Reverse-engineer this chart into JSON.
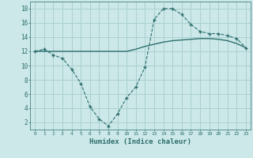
{
  "line1_x": [
    0,
    1,
    2,
    3,
    4,
    5,
    6,
    7,
    8,
    9,
    10,
    11,
    12,
    13,
    14,
    15,
    16,
    17,
    18,
    19,
    20,
    21,
    22,
    23
  ],
  "line1_y": [
    12,
    12,
    12,
    12,
    12,
    12,
    12,
    12,
    12,
    12,
    12,
    12.3,
    12.7,
    13.0,
    13.3,
    13.5,
    13.6,
    13.7,
    13.8,
    13.8,
    13.7,
    13.5,
    13.1,
    12.5
  ],
  "line2_x": [
    0,
    1,
    2,
    3,
    4,
    5,
    6,
    7,
    8,
    9,
    10,
    11,
    12,
    13,
    14,
    15,
    16,
    17,
    18,
    19,
    20,
    21,
    22,
    23
  ],
  "line2_y": [
    12,
    12.3,
    11.5,
    11.0,
    9.5,
    7.5,
    4.2,
    2.5,
    1.5,
    3.2,
    5.5,
    7.0,
    9.8,
    16.5,
    18.0,
    18.0,
    17.2,
    15.8,
    14.8,
    14.5,
    14.5,
    14.2,
    13.8,
    12.5
  ],
  "line_color": "#2e6e6e",
  "bg_color": "#cce8e8",
  "grid_color": "#aad0d0",
  "xlabel": "Humidex (Indice chaleur)",
  "xlim": [
    -0.5,
    23.5
  ],
  "ylim": [
    1,
    19
  ],
  "yticks": [
    2,
    4,
    6,
    8,
    10,
    12,
    14,
    16,
    18
  ],
  "xticks": [
    0,
    1,
    2,
    3,
    4,
    5,
    6,
    7,
    8,
    9,
    10,
    11,
    12,
    13,
    14,
    15,
    16,
    17,
    18,
    19,
    20,
    21,
    22,
    23
  ],
  "tick_labels": [
    "0",
    "1",
    "2",
    "3",
    "4",
    "5",
    "6",
    "7",
    "8",
    "9",
    "10",
    "11",
    "12",
    "13",
    "14",
    "15",
    "16",
    "17",
    "18",
    "19",
    "20",
    "21",
    "22",
    "23"
  ]
}
